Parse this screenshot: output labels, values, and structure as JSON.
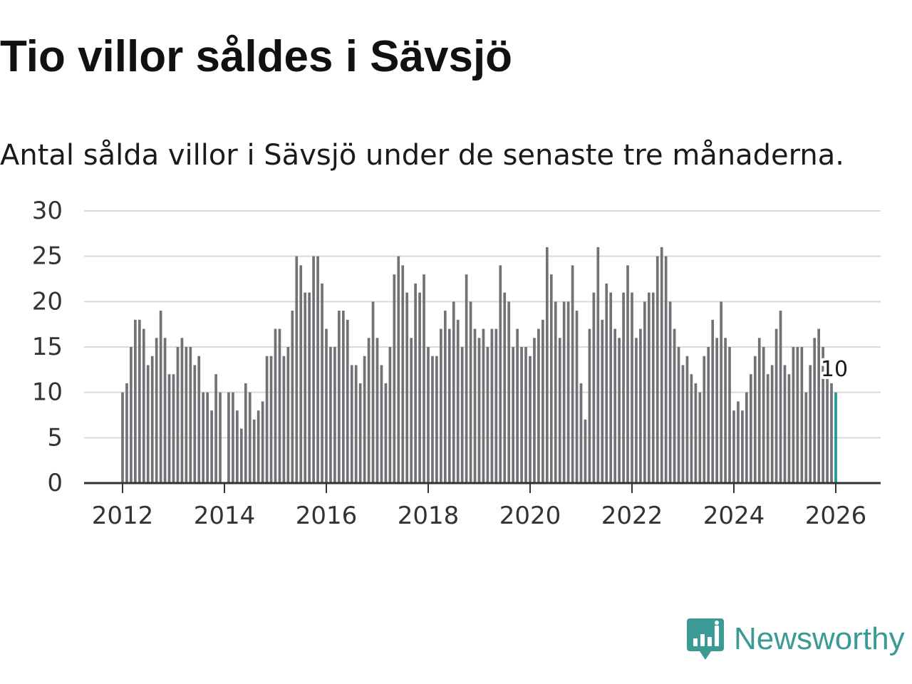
{
  "title": "Tio villor såldes i Sävsjö",
  "subtitle": "Antal sålda villor i Sävsjö under de senaste tre månaderna.",
  "brand": {
    "name": "Newsworthy",
    "logo_icon": "newsworthy-chart-bubble-icon",
    "color": "#3b9a95"
  },
  "colors": {
    "bar": "#727176",
    "highlight": "#1a9e93",
    "grid": "#d9d9d9",
    "axis": "#333333"
  },
  "chart_data": {
    "type": "bar",
    "title": "Tio villor såldes i Sävsjö",
    "subtitle": "Antal sålda villor i Sävsjö under de senaste tre månaderna.",
    "xlabel": "",
    "ylabel": "",
    "ylim": [
      0,
      30
    ],
    "yticks": [
      0,
      5,
      10,
      15,
      20,
      25,
      30
    ],
    "xticks": [
      "2012",
      "2014",
      "2016",
      "2018",
      "2020",
      "2022",
      "2024",
      "2026"
    ],
    "x_start": "2012-01",
    "x_end": "2026-01",
    "grid": true,
    "legend": "none",
    "highlight_last": true,
    "annotation": {
      "x": "2026-01",
      "text": "10"
    },
    "x": [
      "2012-01",
      "2012-02",
      "2012-03",
      "2012-04",
      "2012-05",
      "2012-06",
      "2012-07",
      "2012-08",
      "2012-09",
      "2012-10",
      "2012-11",
      "2012-12",
      "2013-01",
      "2013-02",
      "2013-03",
      "2013-04",
      "2013-05",
      "2013-06",
      "2013-07",
      "2013-08",
      "2013-09",
      "2013-10",
      "2013-11",
      "2013-12",
      "2014-01",
      "2014-02",
      "2014-03",
      "2014-04",
      "2014-05",
      "2014-06",
      "2014-07",
      "2014-08",
      "2014-09",
      "2014-10",
      "2014-11",
      "2014-12",
      "2015-01",
      "2015-02",
      "2015-03",
      "2015-04",
      "2015-05",
      "2015-06",
      "2015-07",
      "2015-08",
      "2015-09",
      "2015-10",
      "2015-11",
      "2015-12",
      "2016-01",
      "2016-02",
      "2016-03",
      "2016-04",
      "2016-05",
      "2016-06",
      "2016-07",
      "2016-08",
      "2016-09",
      "2016-10",
      "2016-11",
      "2016-12",
      "2017-01",
      "2017-02",
      "2017-03",
      "2017-04",
      "2017-05",
      "2017-06",
      "2017-07",
      "2017-08",
      "2017-09",
      "2017-10",
      "2017-11",
      "2017-12",
      "2018-01",
      "2018-02",
      "2018-03",
      "2018-04",
      "2018-05",
      "2018-06",
      "2018-07",
      "2018-08",
      "2018-09",
      "2018-10",
      "2018-11",
      "2018-12",
      "2019-01",
      "2019-02",
      "2019-03",
      "2019-04",
      "2019-05",
      "2019-06",
      "2019-07",
      "2019-08",
      "2019-09",
      "2019-10",
      "2019-11",
      "2019-12",
      "2020-01",
      "2020-02",
      "2020-03",
      "2020-04",
      "2020-05",
      "2020-06",
      "2020-07",
      "2020-08",
      "2020-09",
      "2020-10",
      "2020-11",
      "2020-12",
      "2021-01",
      "2021-02",
      "2021-03",
      "2021-04",
      "2021-05",
      "2021-06",
      "2021-07",
      "2021-08",
      "2021-09",
      "2021-10",
      "2021-11",
      "2021-12",
      "2022-01",
      "2022-02",
      "2022-03",
      "2022-04",
      "2022-05",
      "2022-06",
      "2022-07",
      "2022-08",
      "2022-09",
      "2022-10",
      "2022-11",
      "2022-12",
      "2023-01",
      "2023-02",
      "2023-03",
      "2023-04",
      "2023-05",
      "2023-06",
      "2023-07",
      "2023-08",
      "2023-09",
      "2023-10",
      "2023-11",
      "2023-12",
      "2024-01",
      "2024-02",
      "2024-03",
      "2024-04",
      "2024-05",
      "2024-06",
      "2024-07",
      "2024-08",
      "2024-09",
      "2024-10",
      "2024-11",
      "2024-12",
      "2025-01",
      "2025-02",
      "2025-03",
      "2025-04",
      "2025-05",
      "2025-06",
      "2025-07",
      "2025-08",
      "2025-09",
      "2025-10",
      "2025-11",
      "2025-12",
      "2026-01"
    ],
    "values": [
      10,
      11,
      15,
      18,
      18,
      17,
      13,
      14,
      16,
      19,
      16,
      12,
      12,
      15,
      16,
      15,
      15,
      13,
      14,
      10,
      10,
      8,
      12,
      10,
      0,
      10,
      10,
      8,
      6,
      11,
      10,
      7,
      8,
      9,
      14,
      14,
      17,
      17,
      14,
      15,
      19,
      25,
      24,
      21,
      21,
      25,
      25,
      22,
      17,
      15,
      15,
      19,
      19,
      18,
      13,
      13,
      11,
      14,
      16,
      20,
      16,
      13,
      11,
      15,
      23,
      25,
      24,
      21,
      16,
      22,
      21,
      23,
      15,
      14,
      14,
      17,
      19,
      17,
      20,
      18,
      15,
      23,
      20,
      17,
      16,
      17,
      15,
      17,
      17,
      24,
      21,
      20,
      15,
      17,
      15,
      15,
      14,
      16,
      17,
      18,
      26,
      23,
      20,
      16,
      20,
      20,
      24,
      19,
      11,
      7,
      17,
      21,
      26,
      18,
      22,
      21,
      17,
      16,
      21,
      24,
      21,
      16,
      17,
      20,
      21,
      21,
      25,
      26,
      25,
      20,
      17,
      15,
      13,
      14,
      12,
      11,
      10,
      14,
      15,
      18,
      16,
      20,
      16,
      15,
      8,
      9,
      8,
      10,
      12,
      14,
      16,
      15,
      12,
      13,
      17,
      19,
      13,
      12,
      15,
      15,
      15,
      10,
      13,
      16,
      17,
      15,
      12,
      11,
      10
    ]
  }
}
